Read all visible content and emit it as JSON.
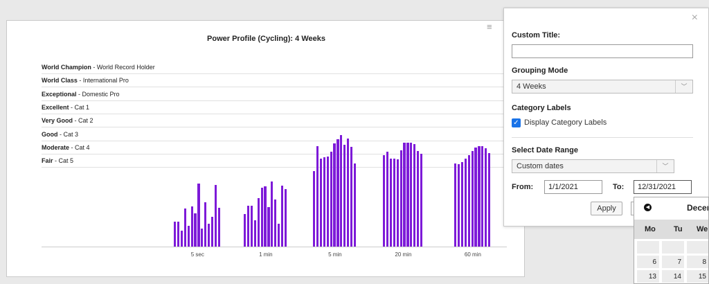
{
  "chart_data": {
    "type": "bar",
    "title": "Power Profile (Cycling): 4 Weeks",
    "categories": [
      "5 sec",
      "1 min",
      "5 min",
      "20 min",
      "60 min"
    ],
    "category_levels": [
      {
        "bold": "World Champion",
        "rest": " - World Record Holder"
      },
      {
        "bold": "World Class",
        "rest": " - International Pro"
      },
      {
        "bold": "Exceptional",
        "rest": " - Domestic Pro"
      },
      {
        "bold": "Excellent",
        "rest": " - Cat 1"
      },
      {
        "bold": "Very Good",
        "rest": " - Cat 2"
      },
      {
        "bold": "Good",
        "rest": " - Cat 3"
      },
      {
        "bold": "Moderate",
        "rest": " - Cat 4"
      },
      {
        "bold": "Fair",
        "rest": " - Cat 5"
      }
    ],
    "groups": [
      {
        "label": "5 sec",
        "values": [
          36,
          36,
          23,
          55,
          30,
          58,
          48,
          91,
          26,
          64,
          33,
          43,
          89,
          56
        ]
      },
      {
        "label": "1 min",
        "values": [
          47,
          59,
          59,
          38,
          70,
          85,
          87,
          57,
          94,
          68,
          33,
          88,
          83
        ]
      },
      {
        "label": "5 min",
        "values": [
          109,
          145,
          127,
          129,
          130,
          137,
          149,
          155,
          161,
          147,
          156,
          144,
          120
        ]
      },
      {
        "label": "20 min",
        "values": [
          132,
          137,
          127,
          127,
          126,
          139,
          150,
          150,
          150,
          148,
          138,
          134
        ]
      },
      {
        "label": "60 min",
        "values": [
          120,
          119,
          122,
          127,
          132,
          138,
          143,
          145,
          145,
          142,
          135
        ]
      }
    ],
    "ylim": [
      0,
      175
    ],
    "bar_color": "#7d1ad8",
    "grid": true
  },
  "panel": {
    "close_label": "×",
    "custom_title_label": "Custom Title:",
    "custom_title_value": "",
    "grouping_label": "Grouping Mode",
    "grouping_value": "4 Weeks",
    "category_labels_heading": "Category Labels",
    "display_category_labels": "Display Category Labels",
    "date_range_heading": "Select Date Range",
    "date_range_value": "Custom dates",
    "from_label": "From:",
    "from_value": "1/1/2021",
    "to_label": "To:",
    "to_value": "12/31/2021",
    "apply_label": "Apply"
  },
  "calendar": {
    "month_label": "Decem",
    "dow": [
      "Mo",
      "Tu",
      "We"
    ],
    "rows": [
      [
        "",
        "",
        ""
      ],
      [
        "6",
        "7",
        "8"
      ],
      [
        "13",
        "14",
        "15"
      ]
    ]
  },
  "icons": {
    "menu": "≡",
    "prev": "◀",
    "dropdown": "﹀",
    "check": "✓"
  }
}
